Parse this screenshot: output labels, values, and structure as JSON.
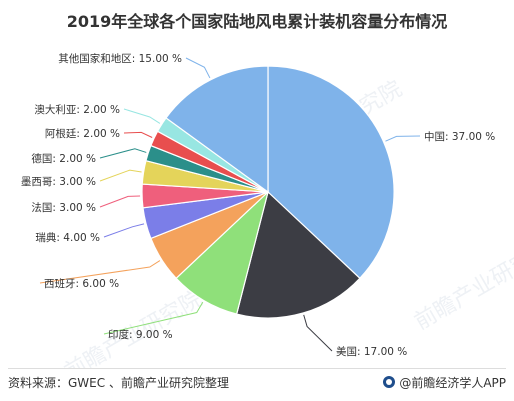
{
  "chart_data": {
    "type": "pie",
    "title": "2019年全球各个国家陆地风电累计装机容量分布情况",
    "slices": [
      {
        "label": "中国",
        "value": 37.0,
        "display": "中国: 37.00 %",
        "color": "#7fb3ea"
      },
      {
        "label": "美国",
        "value": 17.0,
        "display": "美国: 17.00 %",
        "color": "#3c3d44"
      },
      {
        "label": "印度",
        "value": 9.0,
        "display": "印度: 9.00 %",
        "color": "#8fe07a"
      },
      {
        "label": "西班牙",
        "value": 6.0,
        "display": "西班牙: 6.00 %",
        "color": "#f4a25c"
      },
      {
        "label": "瑞典",
        "value": 4.0,
        "display": "瑞典: 4.00 %",
        "color": "#7b7ee8"
      },
      {
        "label": "法国",
        "value": 3.0,
        "display": "法国: 3.00 %",
        "color": "#ef5f7c"
      },
      {
        "label": "墨西哥",
        "value": 3.0,
        "display": "墨西哥: 3.00 %",
        "color": "#e4d45a"
      },
      {
        "label": "德国",
        "value": 2.0,
        "display": "德国: 2.00 %",
        "color": "#2b8f8a"
      },
      {
        "label": "阿根廷",
        "value": 2.0,
        "display": "阿根廷: 2.00 %",
        "color": "#e84e4e"
      },
      {
        "label": "澳大利亚",
        "value": 2.0,
        "display": "澳大利亚: 2.00 %",
        "color": "#98e6e2"
      },
      {
        "label": "其他国家和地区",
        "value": 15.0,
        "display": "其他国家和地区: 15.00 %",
        "color": "#7fb3ea"
      }
    ],
    "start_angle_deg": 0,
    "direction": "clockwise"
  },
  "watermark": "前瞻产业研究院",
  "footer": {
    "source": "资料来源：GWEC 、前瞻产业研究院整理",
    "credit": "@前瞻经济学人APP"
  }
}
